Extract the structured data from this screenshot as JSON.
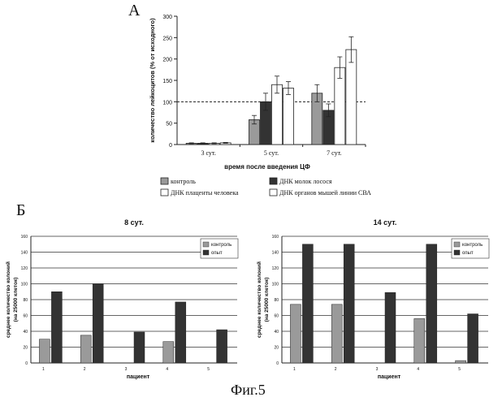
{
  "figure_caption": "Фиг.5",
  "panel_a_letter": "А",
  "panel_b_letter": "Б",
  "chart_data": [
    {
      "type": "bar",
      "panel": "А",
      "xlabel": "время после введения ЦФ",
      "ylabel": "количество лейкоцитов (% от исходного)",
      "ylim": [
        0,
        300
      ],
      "yticks": [
        0,
        50,
        100,
        150,
        200,
        250,
        300
      ],
      "reference_line": 100,
      "categories": [
        "3 сут.",
        "5 сут.",
        "7 сут."
      ],
      "series": [
        {
          "name": "контроль",
          "color": "#9a9a9a",
          "values": [
            3,
            58,
            120
          ],
          "errors": [
            1,
            10,
            20
          ]
        },
        {
          "name": "ДНК молок лосося",
          "color": "#333333",
          "values": [
            3,
            100,
            80
          ],
          "errors": [
            1,
            20,
            15
          ]
        },
        {
          "name": "ДНК плаценты человека",
          "color": "#ffffff",
          "values": [
            3,
            140,
            180
          ],
          "errors": [
            1,
            20,
            25
          ]
        },
        {
          "name": "ДНК органов мышей линии СВА",
          "color": "#ffffff",
          "values": [
            4,
            132,
            222
          ],
          "errors": [
            1,
            15,
            30
          ]
        }
      ],
      "legend_position": "bottom"
    },
    {
      "type": "bar",
      "panel": "Б",
      "title": "8 сут.",
      "xlabel": "пациент",
      "ylabel": "среднее количество колоний (на 25000 клеток)",
      "ylim": [
        0,
        160
      ],
      "yticks": [
        0,
        20,
        40,
        60,
        80,
        100,
        120,
        140,
        160
      ],
      "categories": [
        "1",
        "2",
        "3",
        "4",
        "5"
      ],
      "series": [
        {
          "name": "контроль",
          "color": "#9a9a9a",
          "values": [
            30,
            35,
            0,
            27,
            0
          ]
        },
        {
          "name": "опыт",
          "color": "#333333",
          "values": [
            90,
            100,
            39,
            77,
            42
          ]
        }
      ],
      "legend_position": "top-right"
    },
    {
      "type": "bar",
      "panel": "Б",
      "title": "14 сут.",
      "xlabel": "пациент",
      "ylabel": "среднее количество колоний (на 25000 клеток)",
      "ylim": [
        0,
        160
      ],
      "yticks": [
        0,
        20,
        40,
        60,
        80,
        100,
        120,
        140,
        160
      ],
      "categories": [
        "1",
        "2",
        "3",
        "4",
        "5"
      ],
      "series": [
        {
          "name": "контроль",
          "color": "#9a9a9a",
          "values": [
            74,
            74,
            0,
            56,
            3
          ]
        },
        {
          "name": "опыт",
          "color": "#333333",
          "values": [
            150,
            150,
            89,
            150,
            62
          ]
        }
      ],
      "legend_position": "top-right"
    }
  ]
}
